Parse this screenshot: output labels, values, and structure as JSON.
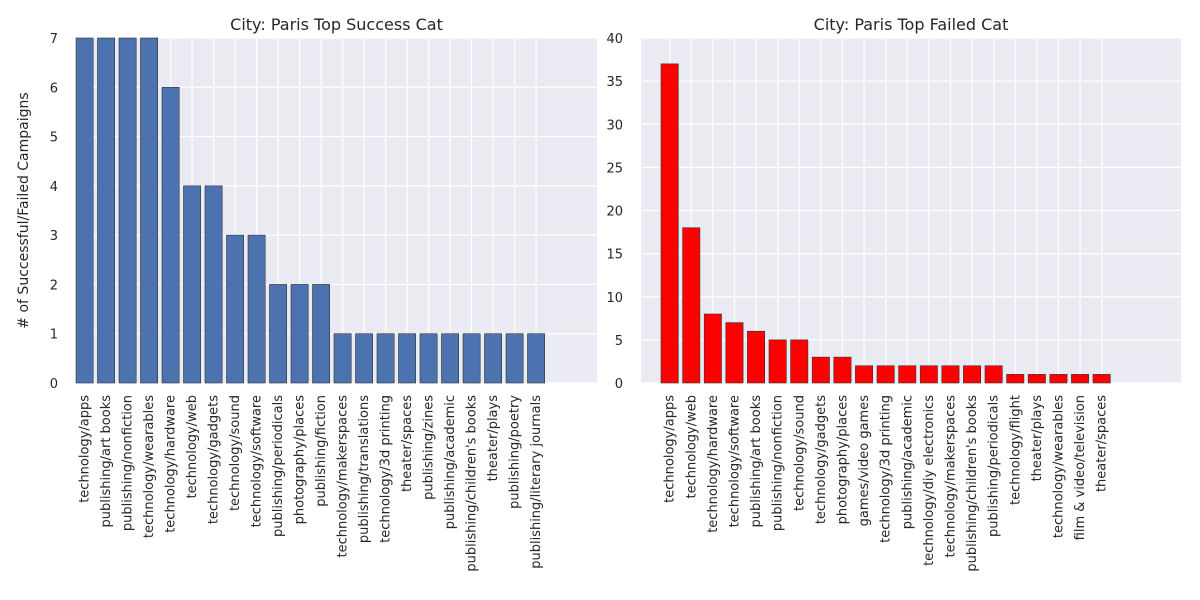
{
  "chart_data": [
    {
      "type": "bar",
      "title": "City: Paris Top Success Cat",
      "ylabel": "# of Successful/Failed Campaigns",
      "xlabel": "",
      "ylim": [
        0,
        7
      ],
      "yticks": [
        0,
        1,
        2,
        3,
        4,
        5,
        6,
        7
      ],
      "grid": true,
      "color": "#4c72b0",
      "categories": [
        "technology/apps",
        "publishing/art books",
        "publishing/nonfiction",
        "technology/wearables",
        "technology/hardware",
        "technology/web",
        "technology/gadgets",
        "technology/sound",
        "technology/software",
        "publishing/periodicals",
        "photography/places",
        "publishing/fiction",
        "technology/makerspaces",
        "publishing/translations",
        "technology/3d printing",
        "theater/spaces",
        "publishing/zines",
        "publishing/academic",
        "publishing/children's books",
        "theater/plays",
        "publishing/poetry",
        "publishing/literary journals"
      ],
      "values": [
        7,
        7,
        7,
        7,
        6,
        4,
        4,
        3,
        3,
        2,
        2,
        2,
        1,
        1,
        1,
        1,
        1,
        1,
        1,
        1,
        1,
        1
      ]
    },
    {
      "type": "bar",
      "title": "City: Paris Top Failed Cat",
      "ylabel": "",
      "xlabel": "",
      "ylim": [
        0,
        40
      ],
      "yticks": [
        0,
        5,
        10,
        15,
        20,
        25,
        30,
        35,
        40
      ],
      "grid": true,
      "color": "#ff0000",
      "categories": [
        "technology/apps",
        "technology/web",
        "technology/hardware",
        "technology/software",
        "publishing/art books",
        "publishing/nonfiction",
        "technology/sound",
        "technology/gadgets",
        "photography/places",
        "games/video games",
        "technology/3d printing",
        "publishing/academic",
        "technology/diy electronics",
        "technology/makerspaces",
        "publishing/children's books",
        "publishing/periodicals",
        "technology/flight",
        "theater/plays",
        "technology/wearables",
        "film & video/television",
        "theater/spaces"
      ],
      "values": [
        37,
        18,
        8,
        7,
        6,
        5,
        5,
        3,
        3,
        2,
        2,
        2,
        2,
        2,
        2,
        2,
        1,
        1,
        1,
        1,
        1
      ]
    }
  ]
}
